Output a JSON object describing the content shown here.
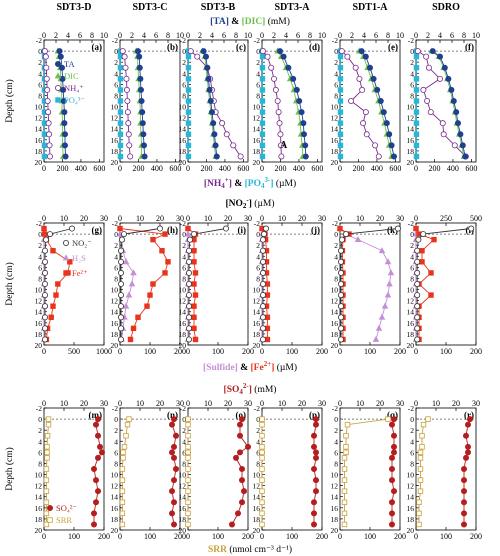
{
  "columns": [
    "SDT3-D",
    "SDT3-C",
    "SDT3-B",
    "SDT3-A",
    "SDT1-A",
    "SDRO"
  ],
  "colors": {
    "TA": "#1f3f8f",
    "DIC": "#6cc04a",
    "NH4": "#7a2a8c",
    "PO4": "#29b6d6",
    "NO2": "#a0a0a0",
    "H2S": "#c58fd6",
    "Fe": "#e8341c",
    "SO4": "#b41e1e",
    "SRR": "#c9a13b"
  },
  "rows": [
    {
      "top_title": {
        "a": "[TA]",
        "amp": " & ",
        "b": "[DIC]",
        "unit": " (mM)"
      },
      "top_ticks": [
        "0",
        "2",
        "4",
        "6",
        "8",
        "10"
      ],
      "top_range": [
        0,
        10
      ],
      "bottom_title": {
        "a": "[NH",
        "a_sub": "4",
        "a_sup": "+",
        "a2": "]",
        "amp": " & ",
        "b": "[PO",
        "b_sub": "4",
        "b_sup": "3-",
        "b2": "]",
        "unit": " (µM)"
      },
      "bottom_ticks": [
        "0",
        "200",
        "400",
        "600"
      ],
      "bottom_range": [
        0,
        650
      ],
      "panel_labels": [
        "(a)",
        "(b)",
        "(c)",
        "(d)",
        "(e)",
        "(f)"
      ],
      "legend": [
        "TA",
        "DIC",
        "NH₄⁺",
        "PO₄³⁻"
      ],
      "annotation": "A"
    },
    {
      "top_title": {
        "a": "[NO",
        "a_sub": "2",
        "a_sup": "-",
        "a2": "]",
        "unit": " (µM)"
      },
      "top_ticks": [
        "0",
        "10",
        "20",
        "30"
      ],
      "top_ticks_alt": [
        "0",
        "250",
        "500"
      ],
      "top_range": [
        0,
        30
      ],
      "top_range_alt": [
        0,
        500
      ],
      "bottom_title": {
        "a": "[Sulfide]",
        "amp": " & ",
        "b": "[Fe",
        "b_sup": "2+",
        "b2": "]",
        "unit": " (µM)"
      },
      "bottom_ticks": [
        "0",
        "100",
        "200"
      ],
      "bottom_ticks_first": [
        "0",
        "500",
        "1000"
      ],
      "bottom_range": [
        0,
        200
      ],
      "bottom_range_first": [
        0,
        1000
      ],
      "panel_labels": [
        "(g)",
        "(h)",
        "(i)",
        "(j)",
        "(k)",
        "(l)"
      ],
      "legend": [
        "NO₂⁻",
        "H₂S",
        "Fe²⁺"
      ]
    },
    {
      "top_title": {
        "a": "[SO",
        "a_sub": "4",
        "a_sup": "2-",
        "a2": "]",
        "unit": " (mM)"
      },
      "top_ticks": [
        "0",
        "10",
        "20",
        "30"
      ],
      "top_range": [
        0,
        30
      ],
      "bottom_title": {
        "a": "SRR",
        "unit": " (nmol cm⁻³ d⁻¹)"
      },
      "bottom_ticks": [
        "0",
        "100",
        "200"
      ],
      "bottom_range": [
        0,
        200
      ],
      "panel_labels": [
        "(m)",
        "(n)",
        "(o)",
        "(p)",
        "(q)",
        "(r)"
      ],
      "legend": [
        "SO₄²⁻",
        "SRR"
      ]
    }
  ],
  "ylabel": "Depth (cm)",
  "yticks": [
    "-2",
    "0",
    "2",
    "4",
    "6",
    "8",
    "10",
    "12",
    "14",
    "16",
    "18",
    "20"
  ],
  "yrange": [
    -2,
    20
  ],
  "chart_data": [
    {
      "type": "scatter",
      "row": 1,
      "depth": [
        0,
        1,
        3,
        5,
        7,
        9,
        11,
        13,
        15,
        17,
        19
      ],
      "panels": [
        {
          "column": "SDT3-D",
          "TA": [
            2.6,
            2.8,
            3.0,
            3.1,
            3.2,
            3.3,
            3.4,
            3.4,
            3.5,
            3.5,
            3.6
          ],
          "DIC": [
            2.3,
            2.5,
            2.7,
            2.8,
            2.9,
            3.0,
            3.0,
            3.1,
            3.1,
            3.1,
            3.2
          ],
          "NH4": [
            10,
            20,
            25,
            30,
            35,
            40,
            45,
            50,
            55,
            60,
            65
          ],
          "PO4": [
            5,
            5,
            5,
            5,
            5,
            5,
            5,
            5,
            5,
            5,
            5
          ]
        },
        {
          "column": "SDT3-C",
          "TA": [
            3.0,
            3.2,
            3.3,
            3.4,
            3.5,
            3.6,
            3.7,
            3.8,
            3.9,
            4.0,
            4.1
          ],
          "DIC": [
            2.7,
            2.9,
            3.0,
            3.1,
            3.2,
            3.3,
            3.4,
            3.4,
            3.5,
            3.6,
            3.6
          ],
          "NH4": [
            30,
            50,
            60,
            70,
            75,
            80,
            85,
            90,
            95,
            100,
            110
          ],
          "PO4": [
            5,
            5,
            5,
            5,
            5,
            5,
            5,
            5,
            5,
            5,
            5
          ]
        },
        {
          "column": "SDT3-B",
          "TA": [
            2.6,
            3.0,
            3.2,
            3.4,
            3.6,
            3.8,
            4.0,
            4.2,
            4.4,
            4.6,
            4.8
          ],
          "DIC": [
            2.4,
            2.8,
            3.0,
            3.2,
            3.4,
            3.6,
            3.8,
            4.0,
            4.2,
            4.4,
            4.6
          ],
          "NH4": [
            30,
            100,
            210,
            240,
            260,
            280,
            300,
            370,
            420,
            490,
            570
          ],
          "PO4": [
            5,
            5,
            5,
            5,
            5,
            5,
            5,
            5,
            5,
            5,
            5
          ]
        },
        {
          "column": "SDT3-A",
          "TA": [
            3.0,
            3.6,
            4.4,
            5.2,
            5.8,
            6.2,
            6.6,
            6.9,
            7.0,
            7.2,
            7.3
          ],
          "DIC": [
            2.6,
            3.2,
            4.0,
            4.7,
            5.3,
            5.7,
            6.1,
            6.4,
            6.5,
            6.7,
            6.8
          ],
          "NH4": [
            10,
            60,
            100,
            130,
            150,
            170,
            180,
            190,
            200,
            205,
            210
          ],
          "PO4": [
            5,
            5,
            5,
            5,
            5,
            5,
            5,
            5,
            5,
            5,
            5
          ]
        },
        {
          "column": "SDT1-A",
          "TA": [
            3.6,
            4.3,
            5.0,
            5.6,
            6.2,
            6.8,
            7.3,
            7.8,
            8.2,
            8.6,
            9.0
          ],
          "DIC": [
            3.2,
            3.9,
            4.6,
            5.2,
            5.8,
            6.4,
            6.9,
            7.4,
            7.8,
            8.2,
            8.6
          ],
          "NH4": [
            20,
            80,
            170,
            210,
            240,
            120,
            280,
            250,
            290,
            380,
            420
          ],
          "PO4": [
            5,
            5,
            5,
            5,
            5,
            5,
            5,
            5,
            5,
            5,
            5
          ]
        },
        {
          "column": "SDRO",
          "TA": [
            2.8,
            4.0,
            4.8,
            5.4,
            5.9,
            6.3,
            6.7,
            7.0,
            7.4,
            7.8,
            8.2
          ],
          "DIC": [
            2.6,
            3.8,
            4.6,
            5.2,
            5.7,
            6.1,
            6.5,
            6.8,
            7.2,
            7.6,
            8.0
          ],
          "NH4": [
            20,
            110,
            140,
            260,
            80,
            120,
            160,
            290,
            300,
            420,
            540
          ],
          "PO4": [
            5,
            5,
            5,
            5,
            5,
            5,
            5,
            5,
            5,
            5,
            5
          ]
        }
      ]
    },
    {
      "type": "scatter",
      "row": 2,
      "depth": [
        -1,
        0,
        1,
        3,
        5,
        7,
        9,
        11,
        13,
        15,
        17,
        19
      ],
      "panels": [
        {
          "column": "SDT3-D",
          "NO2": [
            14,
            3,
            1,
            0.5,
            0.5,
            0.5,
            0.5,
            0.5,
            0.5,
            0.5,
            0.5,
            0.5
          ],
          "H2S": [
            0,
            0,
            0,
            0,
            0,
            0,
            0,
            0,
            0,
            0,
            0,
            0
          ],
          "Fe": [
            0,
            10,
            40,
            150,
            430,
            400,
            230,
            200,
            150,
            120,
            60,
            40
          ]
        },
        {
          "column": "SDT3-C",
          "NO2": [
            20,
            2,
            1,
            0.5,
            0.5,
            0.5,
            0.5,
            0.5,
            0.5,
            0.5,
            0.5,
            0.5
          ],
          "H2S": [
            0,
            0,
            5,
            10,
            20,
            45,
            40,
            30,
            20,
            15,
            10,
            5
          ],
          "Fe": [
            0,
            150,
            110,
            140,
            160,
            150,
            110,
            100,
            90,
            60,
            45,
            35
          ]
        },
        {
          "column": "SDT3-B",
          "NO2": [
            19,
            3,
            1,
            0.5,
            0.5,
            0.5,
            0.5,
            0.5,
            0.5,
            0.5,
            0.5,
            0.5
          ],
          "H2S": [
            0,
            0,
            0,
            0,
            0,
            0,
            0,
            0,
            0,
            0,
            0,
            0
          ],
          "Fe": [
            0,
            25,
            20,
            20,
            20,
            25,
            20,
            25,
            20,
            20,
            20,
            25
          ]
        },
        {
          "column": "SDT3-A",
          "NO2": [
            2,
            1,
            0.5,
            0.5,
            0.5,
            0.5,
            0.5,
            0.5,
            0.5,
            0.5,
            0.5,
            0.5
          ],
          "H2S": [
            0,
            0,
            0,
            0,
            0,
            0,
            0,
            0,
            0,
            0,
            0,
            0
          ],
          "Fe": [
            0,
            10,
            12,
            15,
            15,
            15,
            18,
            18,
            15,
            18,
            18,
            18
          ]
        },
        {
          "column": "SDT1-A",
          "NO2": [
            29,
            3,
            1,
            0.5,
            0.5,
            0.5,
            0.5,
            0.5,
            0.5,
            0.5,
            0.5,
            0.5
          ],
          "H2S": [
            0,
            20,
            60,
            140,
            160,
            170,
            165,
            160,
            150,
            140,
            130,
            120
          ],
          "Fe": [
            0,
            30,
            10,
            8,
            8,
            10,
            10,
            10,
            10,
            10,
            10,
            10
          ]
        },
        {
          "column": "SDRO",
          "NO2": [
            460,
            60,
            20,
            10,
            10,
            10,
            10,
            10,
            10,
            10,
            10,
            10
          ],
          "H2S": [
            0,
            0,
            0,
            0,
            0,
            0,
            0,
            0,
            0,
            0,
            0,
            0
          ],
          "Fe": [
            0,
            10,
            60,
            20,
            20,
            50,
            10,
            50,
            10,
            10,
            10,
            10
          ]
        }
      ]
    },
    {
      "type": "scatter",
      "row": 3,
      "depth": [
        0,
        1,
        3,
        5,
        6,
        7,
        9,
        11,
        13,
        15,
        17,
        19
      ],
      "panels": [
        {
          "column": "SDT3-D",
          "SO4": [
            27,
            26,
            27,
            28,
            29,
            27,
            25,
            26,
            27,
            26,
            25,
            25
          ],
          "SRR": [
            15,
            15,
            12,
            10,
            10,
            10,
            8,
            8,
            8,
            8,
            8,
            8
          ]
        },
        {
          "column": "SDT3-C",
          "SO4": [
            27,
            26,
            28,
            27,
            26,
            27,
            28,
            27,
            26,
            27,
            26,
            27
          ],
          "SRR": [
            30,
            25,
            20,
            15,
            10,
            10,
            8,
            8,
            8,
            8,
            8,
            8
          ]
        },
        {
          "column": "SDT3-B",
          "SO4": [
            27,
            26,
            26,
            30,
            26,
            24,
            27,
            27,
            28,
            27,
            25,
            22
          ],
          "SRR": [
            0,
            0,
            0,
            0,
            0,
            0,
            0,
            0,
            0,
            0,
            0,
            0
          ]
        },
        {
          "column": "SDT3-A",
          "SO4": [
            27,
            27,
            26,
            26,
            27,
            27,
            26,
            27,
            27,
            26,
            26,
            26
          ],
          "SRR": [
            0,
            0,
            0,
            0,
            0,
            0,
            0,
            0,
            0,
            0,
            0,
            0
          ]
        },
        {
          "column": "SDT1-A",
          "SO4": [
            27,
            26,
            27,
            27,
            27,
            26,
            26,
            26,
            27,
            26,
            26,
            26
          ],
          "SRR": [
            160,
            25,
            20,
            20,
            20,
            15,
            15,
            15,
            15,
            15,
            15,
            15
          ]
        },
        {
          "column": "SDRO",
          "SO4": [
            27,
            26,
            25,
            26,
            26,
            25,
            24,
            24,
            24,
            24,
            24,
            24
          ],
          "SRR": [
            40,
            25,
            20,
            20,
            15,
            15,
            15,
            15,
            15,
            10,
            10,
            10
          ]
        }
      ]
    }
  ]
}
